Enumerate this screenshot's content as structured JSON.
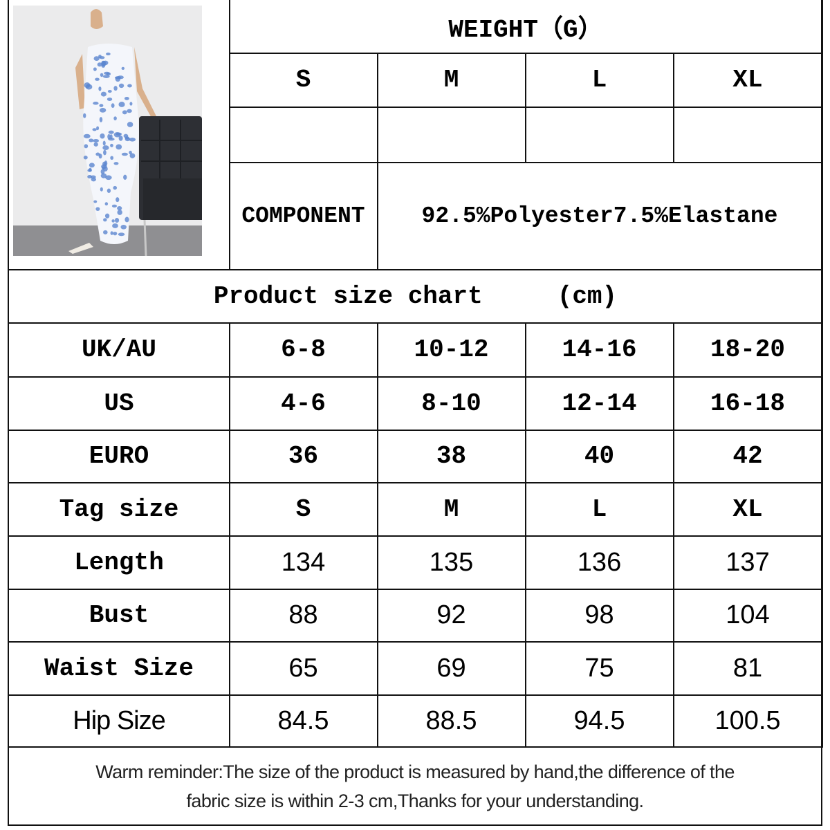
{
  "product_image": {
    "alt": "Blue floral bodycon maxi dress",
    "print_color": "#5b86d0"
  },
  "weight": {
    "title": "WEIGHT（G）",
    "sizes": [
      "S",
      "M",
      "L",
      "XL"
    ],
    "values": [
      "",
      "",
      "",
      ""
    ]
  },
  "component": {
    "label": "COMPONENT",
    "value": "92.5%Polyester7.5%Elastane"
  },
  "size_chart": {
    "title": "Product size chart     (cm)",
    "rows": [
      {
        "label": "UK/AU",
        "values": [
          "6-8",
          "10-12",
          "14-16",
          "18-20"
        ]
      },
      {
        "label": "US",
        "values": [
          "4-6",
          "8-10",
          "12-14",
          "16-18"
        ]
      },
      {
        "label": "EURO",
        "values": [
          "36",
          "38",
          "40",
          "42"
        ]
      },
      {
        "label": "Tag size",
        "values": [
          "S",
          "M",
          "L",
          "XL"
        ]
      },
      {
        "label": "Length",
        "values": [
          "134",
          "135",
          "136",
          "137"
        ]
      },
      {
        "label": "Bust",
        "values": [
          "88",
          "92",
          "98",
          "104"
        ]
      },
      {
        "label": "Waist Size",
        "values": [
          "65",
          "69",
          "75",
          "81"
        ]
      },
      {
        "label": "Hip Size",
        "values": [
          "84.5",
          "88.5",
          "94.5",
          "100.5"
        ]
      }
    ]
  },
  "reminder": {
    "line1": "Warm reminder:The size of the product is measured by hand,the difference of the",
    "line2": "fabric size is within 2-3 cm,Thanks for your understanding."
  }
}
